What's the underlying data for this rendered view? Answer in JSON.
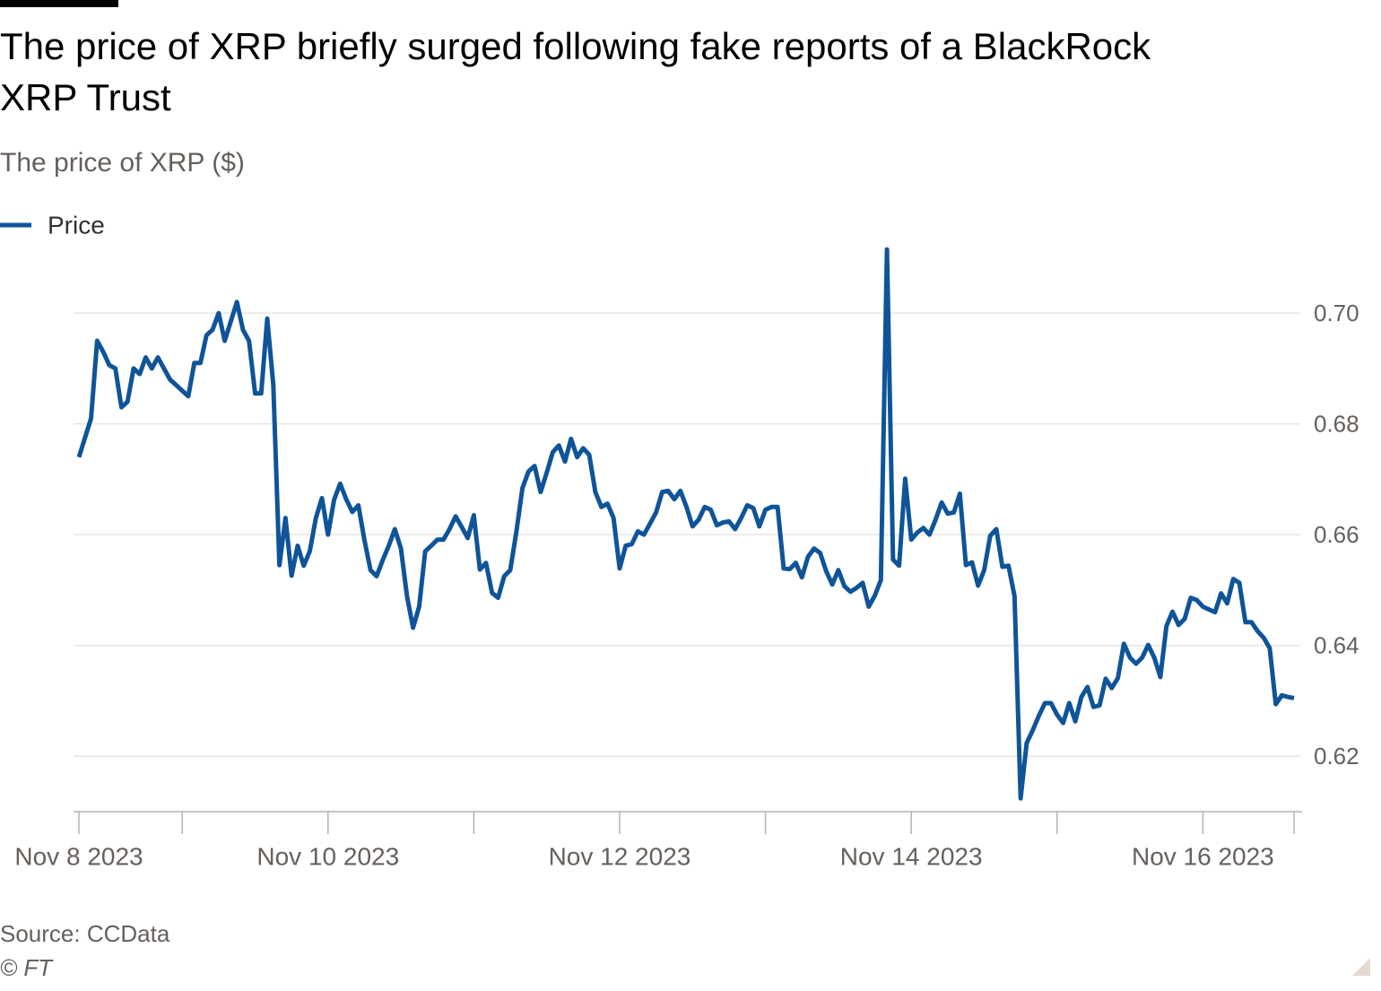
{
  "chart_data": {
    "type": "line",
    "title": "The price of XRP briefly surged following fake reports of a BlackRock XRP Trust",
    "subtitle": "The price of XRP ($)",
    "source": "Source: CCData",
    "credit": "© FT",
    "categories": [
      "Nov 8 2023",
      null,
      null,
      null,
      null,
      null,
      null,
      null,
      null,
      null,
      null,
      null,
      null,
      null,
      null,
      null,
      null,
      null,
      null,
      null,
      null,
      null,
      null,
      null,
      null,
      null,
      null,
      null,
      null,
      null,
      null,
      null,
      null,
      null,
      null,
      null,
      null,
      null,
      null,
      null,
      null,
      "Nov 10 2023",
      null,
      null,
      null,
      null,
      null,
      null,
      null,
      null,
      null,
      null,
      null,
      null,
      null,
      null,
      null,
      null,
      null,
      null,
      null,
      null,
      null,
      null,
      null,
      null,
      null,
      null,
      null,
      null,
      null,
      null,
      null,
      null,
      null,
      null,
      null,
      null,
      null,
      null,
      null,
      null,
      null,
      null,
      null,
      null,
      null,
      null,
      null,
      "Nov 12 2023",
      null,
      null,
      null,
      null,
      null,
      null,
      null,
      null,
      null,
      null,
      null,
      null,
      null,
      null,
      null,
      null,
      null,
      null,
      null,
      null,
      null,
      null,
      null,
      null,
      null,
      null,
      null,
      null,
      null,
      null,
      null,
      null,
      null,
      null,
      null,
      null,
      null,
      null,
      null,
      null,
      null,
      null,
      null,
      null,
      null,
      null,
      null,
      "Nov 14 2023",
      null,
      null,
      null,
      null,
      null,
      null,
      null,
      null,
      null,
      null,
      null,
      null,
      null,
      null,
      null,
      null,
      null,
      null,
      null,
      null,
      null,
      null,
      null,
      null,
      null,
      null,
      null,
      null,
      null,
      null,
      null,
      null,
      null,
      null,
      null,
      null,
      null,
      null,
      null,
      null,
      null,
      null,
      null,
      null,
      null,
      null,
      null,
      "Nov 16 2023",
      null,
      null,
      null,
      null,
      null,
      null,
      null,
      null,
      null,
      null,
      null,
      null,
      null,
      null,
      null
    ],
    "xticks": [
      0,
      17,
      41,
      65,
      89,
      113,
      137,
      161,
      185,
      200
    ],
    "series": [
      {
        "name": "Price",
        "color": "#0f5499",
        "values": [
          0.674,
          0.6775,
          0.681,
          0.695,
          0.693,
          0.6906,
          0.69,
          0.683,
          0.684,
          0.69,
          0.689,
          0.692,
          0.69,
          0.692,
          0.69,
          0.688,
          0.687,
          0.686,
          0.685,
          0.691,
          0.691,
          0.696,
          0.697,
          0.7,
          0.695,
          0.6985,
          0.702,
          0.697,
          0.695,
          0.6855,
          0.6855,
          0.699,
          0.687,
          0.6545,
          0.663,
          0.6526,
          0.658,
          0.6544,
          0.657,
          0.663,
          0.6666,
          0.66,
          0.6663,
          0.6692,
          0.6664,
          0.6641,
          0.6653,
          0.659,
          0.6536,
          0.6525,
          0.6554,
          0.658,
          0.661,
          0.6575,
          0.6489,
          0.6432,
          0.647,
          0.657,
          0.658,
          0.6591,
          0.6591,
          0.661,
          0.6633,
          0.6614,
          0.6594,
          0.6635,
          0.6537,
          0.6549,
          0.6495,
          0.6486,
          0.6525,
          0.6536,
          0.6605,
          0.6684,
          0.6714,
          0.6724,
          0.6677,
          0.6712,
          0.6749,
          0.6761,
          0.6732,
          0.6773,
          0.674,
          0.6756,
          0.6744,
          0.6677,
          0.665,
          0.6656,
          0.663,
          0.6539,
          0.658,
          0.6583,
          0.6606,
          0.66,
          0.662,
          0.664,
          0.6677,
          0.6679,
          0.6664,
          0.6679,
          0.665,
          0.6615,
          0.6627,
          0.665,
          0.6645,
          0.6617,
          0.6622,
          0.6624,
          0.661,
          0.663,
          0.6653,
          0.6648,
          0.6615,
          0.6645,
          0.665,
          0.665,
          0.6539,
          0.6538,
          0.6549,
          0.6523,
          0.656,
          0.6575,
          0.6567,
          0.6534,
          0.651,
          0.6536,
          0.6507,
          0.6497,
          0.6504,
          0.6513,
          0.647,
          0.649,
          0.6518,
          0.7115,
          0.6555,
          0.6544,
          0.6701,
          0.6591,
          0.6604,
          0.6612,
          0.66,
          0.6627,
          0.6658,
          0.6638,
          0.664,
          0.6674,
          0.6545,
          0.655,
          0.6508,
          0.6536,
          0.6598,
          0.661,
          0.6542,
          0.6544,
          0.6489,
          0.6124,
          0.6224,
          0.6247,
          0.6273,
          0.6296,
          0.6296,
          0.6275,
          0.626,
          0.6296,
          0.6263,
          0.6307,
          0.6325,
          0.6289,
          0.6292,
          0.634,
          0.6323,
          0.6341,
          0.6403,
          0.6378,
          0.6367,
          0.6378,
          0.6401,
          0.6378,
          0.6343,
          0.6435,
          0.6461,
          0.6437,
          0.6448,
          0.6486,
          0.6482,
          0.647,
          0.6465,
          0.646,
          0.6494,
          0.6476,
          0.652,
          0.6513,
          0.6442,
          0.6442,
          0.6426,
          0.6414,
          0.6395,
          0.6294,
          0.631,
          0.6307,
          0.6305
        ]
      }
    ],
    "ylim": [
      0.61,
      0.712
    ],
    "yticks": [
      0.62,
      0.64,
      0.66,
      0.68,
      {
        "value": 0.7,
        "label": "0.70"
      }
    ],
    "grid": true
  }
}
